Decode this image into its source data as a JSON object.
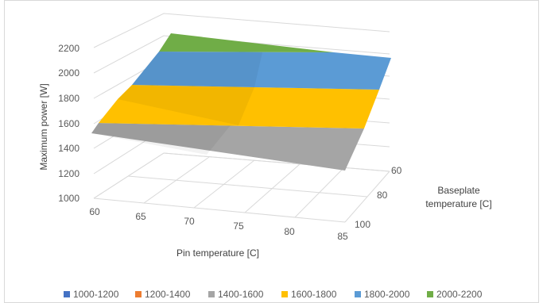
{
  "chart_data": {
    "type": "surface",
    "title": "",
    "xlabel": "Pin temperature [C]",
    "ylabel": "Maximum power [W]",
    "zlabel_line1": "Baseplate",
    "zlabel_line2": "temperature [C]",
    "x_ticks": [
      "60",
      "65",
      "70",
      "75",
      "80",
      "85"
    ],
    "y_ticks": [
      "1000",
      "1200",
      "1400",
      "1600",
      "1800",
      "2000",
      "2200"
    ],
    "z_ticks": [
      "60",
      "80",
      "100"
    ],
    "ylim": [
      1000,
      2200
    ],
    "grid": true,
    "legend_position": "bottom",
    "bands": [
      {
        "name": "1000-1200",
        "color": "#4472C4"
      },
      {
        "name": "1200-1400",
        "color": "#ED7D31"
      },
      {
        "name": "1400-1600",
        "color": "#A5A5A5"
      },
      {
        "name": "1600-1800",
        "color": "#FFC000"
      },
      {
        "name": "1800-2000",
        "color": "#5B9BD5"
      },
      {
        "name": "2000-2200",
        "color": "#70AD47"
      }
    ]
  }
}
